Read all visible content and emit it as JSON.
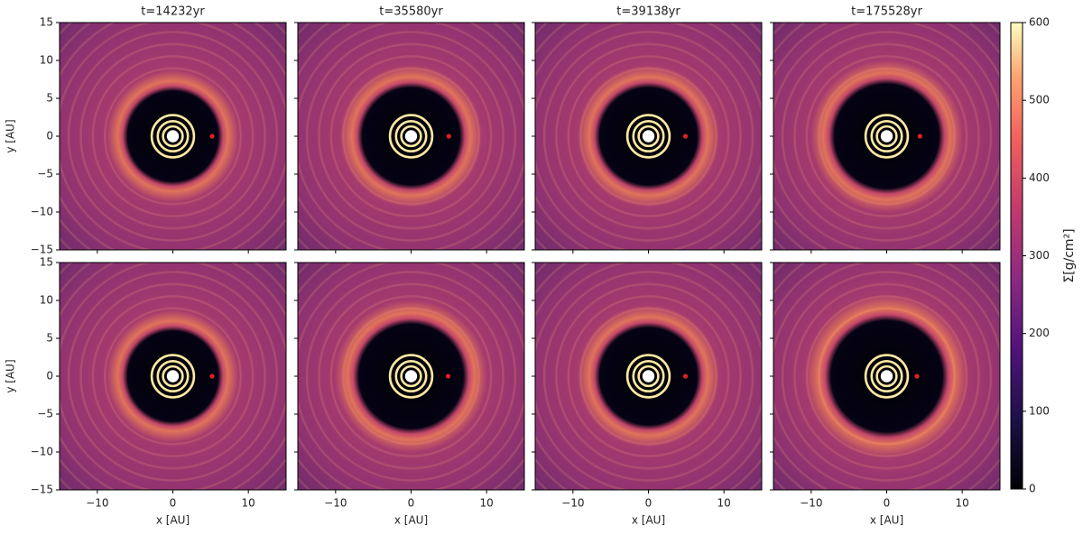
{
  "chart_data": {
    "type": "heatmap",
    "xlim": [
      -15,
      15
    ],
    "ylim": [
      -15,
      15
    ],
    "xticks": [
      {
        "value": -10,
        "label": "−10"
      },
      0,
      10
    ],
    "yticks": [
      {
        "value": -15,
        "label": "−15"
      },
      {
        "value": -10,
        "label": "−10"
      },
      {
        "value": -5,
        "label": "−5"
      },
      0,
      5,
      10,
      15
    ],
    "xlabel": "x [AU]",
    "ylabel": "y [AU]",
    "colorbar": {
      "label": "Σ[g/cm²]",
      "lim": [
        0,
        600
      ],
      "ticks": [
        0,
        100,
        200,
        300,
        400,
        500,
        600
      ]
    },
    "titles": [
      "t=14232yr",
      "t=35580yr",
      "t=39138yr",
      "t=175528yr"
    ],
    "panels": [
      {
        "planet": [
          5.2,
          0
        ],
        "gap_radius": 6.5
      },
      {
        "planet": [
          5.0,
          0
        ],
        "gap_radius": 7.0
      },
      {
        "planet": [
          4.9,
          0
        ],
        "gap_radius": 7.0
      },
      {
        "planet": [
          4.4,
          0
        ],
        "gap_radius": 7.5
      },
      {
        "planet": [
          5.2,
          0
        ],
        "gap_radius": 6.5
      },
      {
        "planet": [
          4.9,
          0
        ],
        "gap_radius": 7.5
      },
      {
        "planet": [
          4.9,
          0
        ],
        "gap_radius": 7.0
      },
      {
        "planet": [
          4.0,
          0
        ],
        "gap_radius": 8.0
      }
    ]
  }
}
